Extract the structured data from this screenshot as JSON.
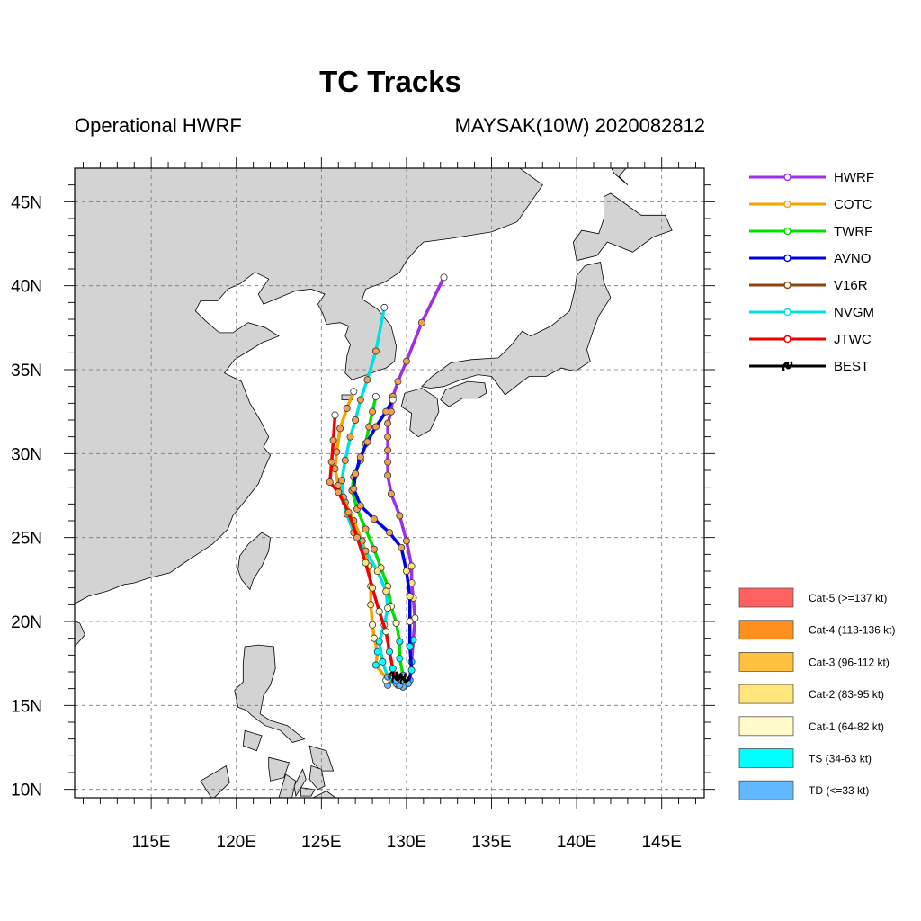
{
  "header": {
    "title": "TC Tracks",
    "subtitle_left": "Operational HWRF",
    "subtitle_right": "MAYSAK(10W) 2020082812"
  },
  "chart_data": {
    "type": "map",
    "lon_range": [
      110.5,
      147.5
    ],
    "lat_range": [
      9.5,
      47
    ],
    "x_tick_labels": [
      "115E",
      "120E",
      "125E",
      "130E",
      "135E",
      "140E",
      "145E"
    ],
    "x_tick_values": [
      115,
      120,
      125,
      130,
      135,
      140,
      145
    ],
    "y_tick_labels": [
      "10N",
      "15N",
      "20N",
      "25N",
      "30N",
      "35N",
      "40N",
      "45N"
    ],
    "y_tick_values": [
      10,
      15,
      20,
      25,
      30,
      35,
      40,
      45
    ],
    "grid": true,
    "legend_placement": "right",
    "series": [
      {
        "name": "HWRF",
        "color": "#9b30e8",
        "points": [
          [
            129.8,
            16.1
          ],
          [
            130.2,
            16.5
          ],
          [
            130.3,
            17.6
          ],
          [
            130.4,
            18.9
          ],
          [
            130.5,
            20.2
          ],
          [
            130.4,
            21.4
          ],
          [
            130.3,
            22.3
          ],
          [
            130.3,
            23.3
          ],
          [
            130.0,
            24.8
          ],
          [
            129.6,
            26.3
          ],
          [
            129.1,
            27.6
          ],
          [
            128.9,
            28.7
          ],
          [
            128.9,
            29.5
          ],
          [
            128.9,
            30.2
          ],
          [
            128.9,
            31.0
          ],
          [
            128.9,
            31.8
          ],
          [
            129.1,
            32.5
          ],
          [
            129.2,
            33.4
          ],
          [
            129.5,
            34.3
          ],
          [
            130.0,
            35.5
          ],
          [
            130.9,
            37.8
          ],
          [
            132.2,
            40.5
          ]
        ]
      },
      {
        "name": "COTC",
        "color": "#f5a300",
        "points": [
          [
            129.5,
            16.2
          ],
          [
            128.9,
            16.5
          ],
          [
            128.2,
            17.4
          ],
          [
            128.3,
            18.2
          ],
          [
            128.1,
            19.0
          ],
          [
            128.0,
            19.8
          ],
          [
            127.9,
            21.0
          ],
          [
            127.9,
            22.1
          ],
          [
            127.8,
            23.3
          ],
          [
            127.4,
            24.8
          ],
          [
            126.9,
            26.0
          ],
          [
            126.4,
            27.1
          ],
          [
            126.0,
            28.1
          ],
          [
            125.8,
            29.1
          ],
          [
            125.9,
            30.1
          ],
          [
            126.1,
            31.5
          ],
          [
            126.5,
            32.7
          ],
          [
            126.9,
            33.7
          ]
        ]
      },
      {
        "name": "TWRF",
        "color": "#00e000",
        "points": [
          [
            129.9,
            16.2
          ],
          [
            129.8,
            16.8
          ],
          [
            129.6,
            17.8
          ],
          [
            129.6,
            18.8
          ],
          [
            129.4,
            19.9
          ],
          [
            129.1,
            20.9
          ],
          [
            128.9,
            22.1
          ],
          [
            128.5,
            23.2
          ],
          [
            128.1,
            24.3
          ],
          [
            127.6,
            25.5
          ],
          [
            127.1,
            26.7
          ],
          [
            126.8,
            27.8
          ],
          [
            126.9,
            28.6
          ],
          [
            127.3,
            29.6
          ],
          [
            127.6,
            30.6
          ],
          [
            127.8,
            31.6
          ],
          [
            128.0,
            32.5
          ],
          [
            128.2,
            33.4
          ]
        ]
      },
      {
        "name": "AVNO",
        "color": "#0000e6",
        "points": [
          [
            130.1,
            16.3
          ],
          [
            130.3,
            17.1
          ],
          [
            130.2,
            18.5
          ],
          [
            130.2,
            20.0
          ],
          [
            130.2,
            21.5
          ],
          [
            130.0,
            23.0
          ],
          [
            129.7,
            24.4
          ],
          [
            129.0,
            25.3
          ],
          [
            128.1,
            26.1
          ],
          [
            127.3,
            26.9
          ],
          [
            126.9,
            27.9
          ],
          [
            127.0,
            28.8
          ],
          [
            127.3,
            29.8
          ],
          [
            127.7,
            30.7
          ],
          [
            128.2,
            31.6
          ],
          [
            128.8,
            32.5
          ],
          [
            129.2,
            33.2
          ]
        ]
      },
      {
        "name": "V16R",
        "color": "#8b4513",
        "points": [
          [
            128.9,
            16.2
          ],
          [
            128.8,
            16.5
          ]
        ]
      },
      {
        "name": "NVGM",
        "color": "#00e0e0",
        "points": [
          [
            129.8,
            16.1
          ],
          [
            129.4,
            16.3
          ],
          [
            128.9,
            16.7
          ],
          [
            128.6,
            17.6
          ],
          [
            128.4,
            18.8
          ],
          [
            128.7,
            19.8
          ],
          [
            128.9,
            20.8
          ],
          [
            128.8,
            21.8
          ],
          [
            128.3,
            23.0
          ],
          [
            127.6,
            24.2
          ],
          [
            126.9,
            25.3
          ],
          [
            126.5,
            26.4
          ],
          [
            126.3,
            27.4
          ],
          [
            126.2,
            28.4
          ],
          [
            126.4,
            29.6
          ],
          [
            126.7,
            31.0
          ],
          [
            127.0,
            32.0
          ],
          [
            127.3,
            33.2
          ],
          [
            127.7,
            34.4
          ],
          [
            128.2,
            36.1
          ],
          [
            128.7,
            38.7
          ]
        ]
      },
      {
        "name": "JTWC",
        "color": "#f00000",
        "points": [
          [
            129.6,
            16.2
          ],
          [
            129.4,
            16.5
          ],
          [
            129.2,
            17.2
          ],
          [
            129.0,
            18.2
          ],
          [
            128.8,
            19.4
          ],
          [
            128.4,
            20.6
          ],
          [
            128.0,
            22.0
          ],
          [
            127.6,
            23.5
          ],
          [
            127.1,
            25.0
          ],
          [
            126.6,
            26.5
          ],
          [
            126.0,
            27.7
          ],
          [
            125.5,
            28.3
          ],
          [
            125.6,
            29.5
          ],
          [
            125.7,
            30.8
          ],
          [
            125.8,
            32.3
          ]
        ]
      },
      {
        "name": "BEST",
        "color": "#000000",
        "points": [
          [
            129.2,
            16.8
          ],
          [
            129.4,
            16.6
          ],
          [
            129.7,
            16.7
          ],
          [
            129.9,
            16.5
          ]
        ]
      }
    ],
    "categories": [
      {
        "label": "Cat-5 (>=137 kt)",
        "color": "#ff6060"
      },
      {
        "label": "Cat-4 (113-136 kt)",
        "color": "#ff9020"
      },
      {
        "label": "Cat-3 (96-112 kt)",
        "color": "#ffc040"
      },
      {
        "label": "Cat-2 (83-95 kt)",
        "color": "#ffe57a"
      },
      {
        "label": "Cat-1 (64-82 kt)",
        "color": "#fffac8"
      },
      {
        "label": "TS (34-63 kt)",
        "color": "#00ffff"
      },
      {
        "label": "TD (<=33 kt)",
        "color": "#60b8ff"
      }
    ],
    "land_color": "#d3d3d3"
  }
}
